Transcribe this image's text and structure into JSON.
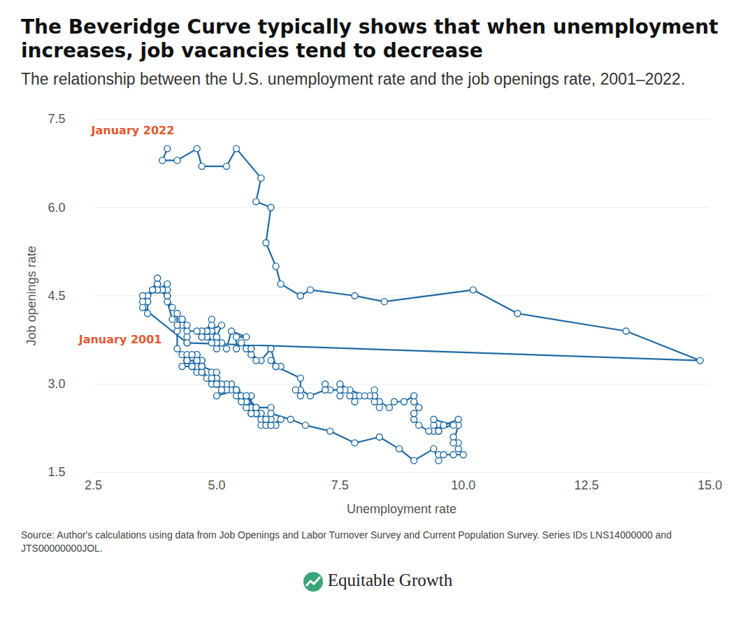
{
  "chart_data": {
    "type": "line",
    "title": "The Beveridge Curve typically shows that when unemployment increases, job vacancies tend to decrease",
    "subtitle": "The relationship between the U.S. unemployment rate and the job openings rate, 2001–2022.",
    "x_label": "Unemployment rate",
    "y_label": "Job openings rate",
    "source": "Source: Author's calculations using data from Job Openings and Labor Turnover Survey and Current Population Survey. Series IDs LNS14000000 and JTS00000000JOL.",
    "brand": "Equitable Growth",
    "color": "#1f6aa5",
    "marker": "circle",
    "line_style": "solid",
    "grid": "y",
    "xlim": [
      2.5,
      15
    ],
    "ylim": [
      1.5,
      7.5
    ],
    "xticks": [
      2.5,
      {
        "value": 5,
        "label": "5.0"
      },
      7.5,
      {
        "value": 10,
        "label": "10.0"
      },
      12.5,
      {
        "value": 15,
        "label": "15.0"
      }
    ],
    "yticks": [
      1.5,
      {
        "value": 3,
        "label": "3.0"
      },
      4.5,
      {
        "value": 6,
        "label": "6.0"
      },
      7.5
    ],
    "annotations": [
      {
        "text": "January 2001",
        "x": 4.2,
        "y": 3.9
      },
      {
        "text": "January 2022",
        "x": 4.0,
        "y": 7.0
      }
    ],
    "x": [
      4.2,
      4.2,
      4.3,
      4.4,
      4.3,
      4.5,
      4.6,
      4.9,
      5.0,
      5.3,
      5.5,
      5.7,
      5.7,
      5.7,
      5.7,
      5.9,
      5.8,
      5.8,
      5.8,
      5.7,
      5.7,
      5.7,
      5.9,
      6.0,
      5.8,
      5.9,
      5.9,
      6.0,
      6.1,
      6.3,
      6.2,
      6.1,
      6.1,
      6.0,
      5.8,
      5.7,
      5.7,
      5.6,
      5.8,
      5.6,
      5.6,
      5.6,
      5.5,
      5.4,
      5.4,
      5.5,
      5.4,
      5.4,
      5.3,
      5.4,
      5.2,
      5.2,
      5.1,
      5.0,
      5.0,
      4.9,
      5.0,
      5.0,
      5.0,
      4.9,
      4.7,
      4.8,
      4.7,
      4.7,
      4.6,
      4.6,
      4.7,
      4.7,
      4.5,
      4.4,
      4.5,
      4.4,
      4.6,
      4.5,
      4.4,
      4.5,
      4.4,
      4.6,
      4.7,
      4.6,
      4.7,
      4.7,
      4.7,
      5.0,
      5.0,
      4.9,
      5.1,
      5.0,
      5.4,
      5.6,
      5.8,
      6.1,
      6.1,
      6.5,
      6.8,
      7.3,
      7.8,
      8.3,
      8.7,
      9.0,
      9.4,
      9.5,
      9.5,
      9.6,
      9.8,
      10.0,
      9.9,
      9.9,
      9.8,
      9.8,
      9.9,
      9.9,
      9.6,
      9.4,
      9.4,
      9.5,
      9.5,
      9.4,
      9.8,
      9.3,
      9.1,
      9.0,
      9.0,
      9.1,
      9.0,
      9.1,
      9.0,
      9.0,
      9.0,
      8.8,
      8.6,
      8.5,
      8.3,
      8.3,
      8.2,
      8.2,
      8.2,
      8.2,
      8.2,
      8.1,
      7.8,
      7.8,
      7.7,
      7.9,
      8.0,
      7.7,
      7.5,
      7.6,
      7.5,
      7.5,
      7.3,
      7.2,
      7.2,
      7.2,
      6.9,
      6.7,
      6.6,
      6.7,
      6.7,
      6.2,
      6.3,
      6.1,
      6.2,
      6.1,
      5.9,
      5.7,
      5.8,
      5.6,
      5.7,
      5.5,
      5.4,
      5.4,
      5.6,
      5.3,
      5.2,
      5.1,
      5.0,
      5.0,
      5.1,
      5.0,
      4.8,
      4.9,
      5.0,
      5.1,
      4.8,
      4.9,
      4.8,
      4.9,
      5.0,
      4.9,
      4.7,
      4.7,
      4.7,
      4.6,
      4.4,
      4.4,
      4.4,
      4.3,
      4.3,
      4.4,
      4.3,
      4.2,
      4.2,
      4.1,
      4.0,
      4.1,
      4.0,
      4.0,
      3.8,
      4.0,
      3.8,
      3.8,
      3.7,
      3.8,
      3.8,
      3.9,
      4.0,
      3.8,
      3.8,
      3.7,
      3.6,
      3.6,
      3.7,
      3.6,
      3.5,
      3.6,
      3.6,
      3.6,
      3.5,
      3.5,
      4.4,
      14.8,
      13.3,
      11.1,
      10.2,
      8.4,
      7.8,
      6.9,
      6.7,
      6.7,
      6.3,
      6.2,
      6.0,
      6.1,
      5.8,
      5.9,
      5.4,
      5.2,
      4.7,
      4.6,
      4.2,
      3.9,
      4.0
    ],
    "values": [
      3.9,
      3.6,
      3.5,
      3.4,
      3.3,
      3.3,
      3.2,
      3.1,
      3.0,
      2.9,
      2.8,
      2.8,
      2.8,
      2.6,
      2.6,
      2.5,
      2.6,
      2.5,
      2.6,
      2.6,
      2.5,
      2.6,
      2.5,
      2.4,
      2.5,
      2.4,
      2.3,
      2.3,
      2.3,
      2.4,
      2.3,
      2.3,
      2.4,
      2.4,
      2.5,
      2.6,
      2.5,
      2.6,
      2.6,
      2.7,
      2.7,
      2.8,
      2.7,
      2.8,
      2.9,
      2.8,
      2.9,
      2.9,
      3.0,
      2.9,
      3.0,
      2.9,
      3.0,
      3.1,
      3.1,
      3.2,
      3.1,
      3.0,
      3.1,
      3.0,
      3.2,
      3.1,
      3.3,
      3.4,
      3.5,
      3.3,
      3.4,
      3.3,
      3.3,
      3.4,
      3.5,
      3.5,
      3.5,
      3.3,
      3.4,
      3.5,
      3.4,
      3.4,
      3.3,
      3.4,
      3.3,
      3.2,
      3.3,
      3.2,
      3.0,
      3.1,
      2.9,
      2.8,
      2.9,
      2.8,
      2.6,
      2.6,
      2.5,
      2.4,
      2.3,
      2.2,
      2.0,
      2.1,
      1.9,
      1.7,
      1.9,
      1.7,
      1.8,
      1.8,
      1.8,
      1.8,
      1.9,
      2.0,
      2.1,
      2.0,
      2.3,
      2.4,
      2.3,
      2.2,
      2.3,
      2.2,
      2.2,
      2.4,
      2.3,
      2.2,
      2.3,
      2.4,
      2.5,
      2.6,
      2.5,
      2.6,
      2.8,
      2.7,
      2.8,
      2.7,
      2.7,
      2.6,
      2.7,
      2.6,
      2.9,
      2.8,
      2.7,
      2.8,
      2.8,
      2.8,
      2.8,
      2.7,
      2.8,
      2.8,
      2.8,
      2.9,
      3.0,
      2.9,
      2.8,
      2.9,
      2.9,
      3.0,
      2.9,
      2.9,
      2.8,
      2.9,
      2.9,
      2.8,
      3.1,
      3.3,
      3.3,
      3.4,
      3.3,
      3.6,
      3.4,
      3.5,
      3.4,
      3.6,
      3.6,
      3.7,
      3.6,
      3.8,
      3.8,
      3.9,
      3.6,
      3.7,
      3.8,
      3.6,
      3.7,
      3.7,
      3.8,
      3.9,
      3.8,
      4.0,
      3.9,
      4.1,
      3.9,
      4.0,
      3.8,
      3.7,
      3.9,
      3.8,
      3.8,
      3.9,
      3.9,
      3.7,
      3.8,
      4.1,
      4.0,
      4.0,
      4.1,
      4.0,
      4.2,
      4.1,
      4.4,
      4.3,
      4.5,
      4.5,
      4.6,
      4.6,
      4.6,
      4.7,
      4.6,
      4.6,
      4.7,
      4.6,
      4.7,
      4.6,
      4.8,
      4.6,
      4.5,
      4.5,
      4.6,
      4.4,
      4.5,
      4.4,
      4.4,
      4.2,
      4.4,
      4.3,
      3.7,
      3.4,
      3.9,
      4.2,
      4.6,
      4.4,
      4.5,
      4.6,
      4.5,
      4.5,
      4.7,
      5.0,
      5.4,
      6.0,
      6.1,
      6.5,
      7.0,
      6.7,
      6.7,
      7.0,
      6.8,
      6.8,
      7.0
    ]
  }
}
